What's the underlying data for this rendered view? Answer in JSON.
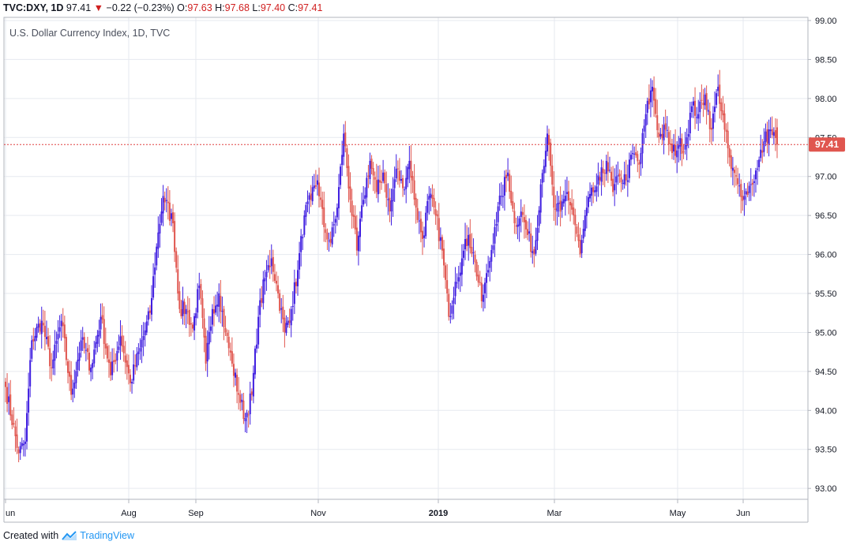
{
  "header": {
    "symbol": "TVC:DXY, 1D",
    "last": "97.41",
    "change": "−0.22 (−0.23%)",
    "o_label": "O:",
    "o_value": "97.63",
    "h_label": "H:",
    "h_value": "97.68",
    "l_label": "L:",
    "l_value": "97.40",
    "c_label": "C:",
    "c_value": "97.41"
  },
  "footer": {
    "created_with": "Created with",
    "brand": "TradingView"
  },
  "chart_data": {
    "type": "candlestick",
    "title": "U.S. Dollar Currency Index, 1D, TVC",
    "yticks": [
      "99.00",
      "98.50",
      "98.00",
      "97.50",
      "97.00",
      "96.50",
      "96.00",
      "95.50",
      "95.00",
      "94.50",
      "94.00",
      "93.50",
      "93.00"
    ],
    "ylim": [
      92.85,
      99.0
    ],
    "xticks": [
      "un",
      "Aug",
      "Sep",
      "Nov",
      "2019",
      "Mar",
      "May",
      "Jun"
    ],
    "last_price_label": "97.41",
    "last_price": 97.41,
    "grid": true,
    "colors": {
      "up": "#3f1ee0",
      "down": "#e0564f",
      "grid": "#e6e9ef",
      "last_line": "#e04040",
      "price_badge": "#e0564f"
    },
    "waypoints": [
      [
        0,
        94.3
      ],
      [
        8,
        93.45
      ],
      [
        12,
        93.6
      ],
      [
        16,
        94.9
      ],
      [
        22,
        95.15
      ],
      [
        28,
        94.55
      ],
      [
        34,
        95.15
      ],
      [
        40,
        94.2
      ],
      [
        46,
        94.9
      ],
      [
        52,
        94.55
      ],
      [
        58,
        95.2
      ],
      [
        64,
        94.45
      ],
      [
        70,
        94.95
      ],
      [
        76,
        94.35
      ],
      [
        82,
        94.8
      ],
      [
        88,
        95.25
      ],
      [
        92,
        96.1
      ],
      [
        96,
        96.75
      ],
      [
        102,
        96.4
      ],
      [
        106,
        95.3
      ],
      [
        110,
        95.3
      ],
      [
        114,
        95.05
      ],
      [
        118,
        95.6
      ],
      [
        122,
        94.6
      ],
      [
        126,
        95.3
      ],
      [
        130,
        95.5
      ],
      [
        134,
        95.0
      ],
      [
        138,
        94.6
      ],
      [
        142,
        94.2
      ],
      [
        146,
        93.9
      ],
      [
        150,
        94.2
      ],
      [
        154,
        95.2
      ],
      [
        158,
        95.7
      ],
      [
        162,
        95.95
      ],
      [
        166,
        95.5
      ],
      [
        170,
        95.0
      ],
      [
        174,
        95.3
      ],
      [
        178,
        95.8
      ],
      [
        182,
        96.5
      ],
      [
        186,
        96.7
      ],
      [
        190,
        96.95
      ],
      [
        194,
        96.35
      ],
      [
        198,
        96.15
      ],
      [
        202,
        96.6
      ],
      [
        206,
        97.55
      ],
      [
        210,
        96.7
      ],
      [
        214,
        96.05
      ],
      [
        218,
        96.7
      ],
      [
        222,
        97.2
      ],
      [
        226,
        96.8
      ],
      [
        230,
        97.05
      ],
      [
        234,
        96.55
      ],
      [
        238,
        97.1
      ],
      [
        242,
        96.85
      ],
      [
        246,
        97.2
      ],
      [
        250,
        96.6
      ],
      [
        254,
        96.2
      ],
      [
        258,
        96.75
      ],
      [
        262,
        96.5
      ],
      [
        266,
        96.05
      ],
      [
        270,
        95.2
      ],
      [
        274,
        95.65
      ],
      [
        278,
        95.95
      ],
      [
        282,
        96.25
      ],
      [
        286,
        95.9
      ],
      [
        290,
        95.4
      ],
      [
        294,
        95.8
      ],
      [
        298,
        96.35
      ],
      [
        302,
        96.75
      ],
      [
        306,
        97.05
      ],
      [
        310,
        96.4
      ],
      [
        314,
        96.55
      ],
      [
        318,
        96.25
      ],
      [
        322,
        96.0
      ],
      [
        326,
        96.9
      ],
      [
        330,
        97.55
      ],
      [
        334,
        96.6
      ],
      [
        338,
        96.55
      ],
      [
        342,
        96.8
      ],
      [
        346,
        96.5
      ],
      [
        350,
        96.0
      ],
      [
        354,
        96.6
      ],
      [
        358,
        96.8
      ],
      [
        362,
        96.95
      ],
      [
        366,
        97.2
      ],
      [
        370,
        96.8
      ],
      [
        374,
        97.0
      ],
      [
        378,
        96.95
      ],
      [
        382,
        97.3
      ],
      [
        386,
        97.15
      ],
      [
        390,
        97.8
      ],
      [
        394,
        98.15
      ],
      [
        398,
        97.5
      ],
      [
        402,
        97.6
      ],
      [
        406,
        97.3
      ],
      [
        410,
        97.4
      ],
      [
        414,
        97.4
      ],
      [
        418,
        97.9
      ],
      [
        422,
        97.8
      ],
      [
        426,
        98.05
      ],
      [
        430,
        97.6
      ],
      [
        434,
        98.15
      ],
      [
        438,
        97.6
      ],
      [
        442,
        97.1
      ],
      [
        446,
        96.9
      ],
      [
        450,
        96.75
      ],
      [
        454,
        96.9
      ],
      [
        458,
        97.1
      ],
      [
        462,
        97.45
      ],
      [
        466,
        97.6
      ],
      [
        470,
        97.41
      ]
    ]
  }
}
